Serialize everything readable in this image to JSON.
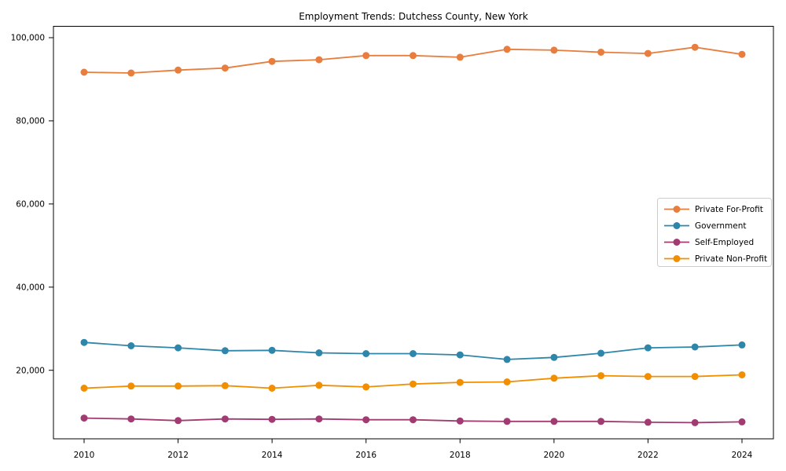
{
  "figure": {
    "background": "#ffffff",
    "axis_color": "#000000"
  },
  "chart_data": {
    "type": "line",
    "title": "Employment Trends: Dutchess County, New York",
    "xlabel": "",
    "ylabel": "",
    "grid": false,
    "x": [
      2010,
      2011,
      2012,
      2013,
      2014,
      2015,
      2016,
      2017,
      2018,
      2019,
      2020,
      2021,
      2022,
      2023,
      2024
    ],
    "xticks": [
      2010,
      2012,
      2014,
      2016,
      2018,
      2020,
      2022,
      2024
    ],
    "xtick_labels": [
      "2010",
      "2012",
      "2014",
      "2016",
      "2018",
      "2020",
      "2022",
      "2024"
    ],
    "yticks": [
      20000,
      40000,
      60000,
      80000,
      100000
    ],
    "ytick_labels": [
      "20,000",
      "40,000",
      "60,000",
      "80,000",
      "100,000"
    ],
    "ylim": [
      3300,
      102900
    ],
    "legend": {
      "position": "center-right",
      "entries": [
        "Private For-Profit",
        "Government",
        "Self-Employed",
        "Private Non-Profit"
      ]
    },
    "series": [
      {
        "name": "Private For-Profit",
        "color": "#E87D3E",
        "values": [
          91700,
          91500,
          92200,
          92700,
          94300,
          94700,
          95700,
          95700,
          95300,
          97200,
          97000,
          96500,
          96200,
          97700,
          96000
        ]
      },
      {
        "name": "Government",
        "color": "#2E86AB",
        "values": [
          26700,
          25900,
          25400,
          24700,
          24800,
          24200,
          24000,
          24000,
          23700,
          22600,
          23100,
          24100,
          25400,
          25600,
          26100
        ]
      },
      {
        "name": "Self-Employed",
        "color": "#A23B72",
        "values": [
          8500,
          8300,
          7900,
          8300,
          8200,
          8300,
          8100,
          8100,
          7800,
          7700,
          7700,
          7700,
          7500,
          7400,
          7600
        ]
      },
      {
        "name": "Private Non-Profit",
        "color": "#F18F01",
        "values": [
          15700,
          16200,
          16200,
          16300,
          15700,
          16400,
          16000,
          16700,
          17100,
          17200,
          18100,
          18700,
          18500,
          18500,
          18900
        ]
      }
    ]
  }
}
